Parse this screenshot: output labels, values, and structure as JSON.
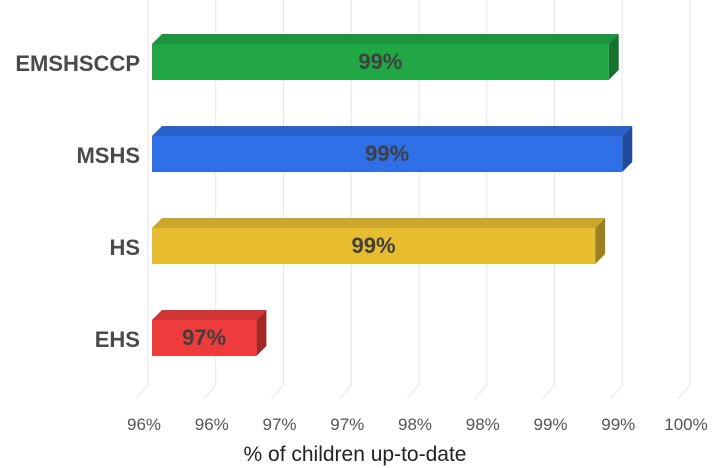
{
  "chart_data": {
    "type": "bar",
    "orientation": "horizontal",
    "style": "3d",
    "categories": [
      "EMSHSCCP",
      "MSHS",
      "HS",
      "EHS"
    ],
    "values": [
      99.4,
      99.5,
      99.3,
      96.8
    ],
    "data_labels": [
      "99%",
      "99%",
      "99%",
      "97%"
    ],
    "colors": [
      "#22a745",
      "#2f6fe6",
      "#e7bd2f",
      "#ee3b3b"
    ],
    "x_ticks": [
      "96%",
      "96%",
      "97%",
      "97%",
      "98%",
      "98%",
      "99%",
      "99%",
      "100%"
    ],
    "xlim": [
      96,
      100
    ],
    "xlabel": "% of children up-to-date",
    "ylabel": "",
    "title": "",
    "grid": true,
    "legend": "none"
  }
}
